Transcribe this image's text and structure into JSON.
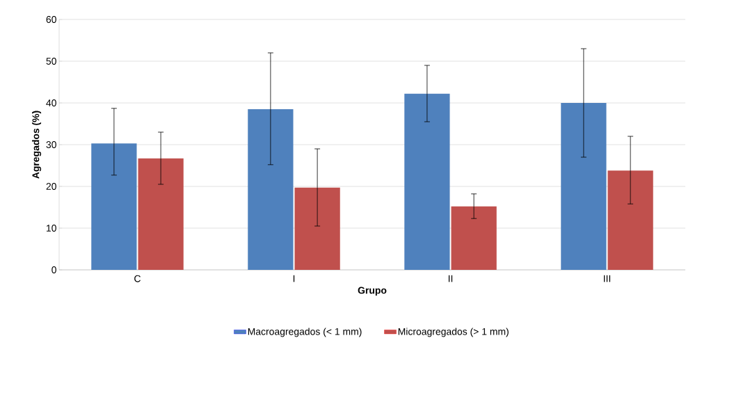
{
  "chart_data": {
    "type": "bar",
    "xlabel": "Grupo",
    "ylabel": "Agregados (%)",
    "categories": [
      "C",
      "I",
      "II",
      "III"
    ],
    "series": [
      {
        "name": "Macroagregados (< 1 mm)",
        "color": "#4f81bd",
        "values": [
          30.3,
          38.5,
          42.2,
          40.0
        ],
        "errors": [
          [
            22.7,
            38.7
          ],
          [
            25.2,
            52.0
          ],
          [
            35.5,
            49.0
          ],
          [
            27.0,
            53.0
          ]
        ]
      },
      {
        "name": "Microagregados (> 1 mm)",
        "color": "#c0504d",
        "values": [
          26.7,
          19.7,
          15.2,
          23.8
        ],
        "errors": [
          [
            20.5,
            33.0
          ],
          [
            10.5,
            29.0
          ],
          [
            12.3,
            18.2
          ],
          [
            15.8,
            32.0
          ]
        ]
      }
    ],
    "ylim": [
      0,
      60
    ],
    "yticks": [
      0,
      10,
      20,
      30,
      40,
      50,
      60
    ],
    "grid": "y",
    "legend": "bottom"
  }
}
